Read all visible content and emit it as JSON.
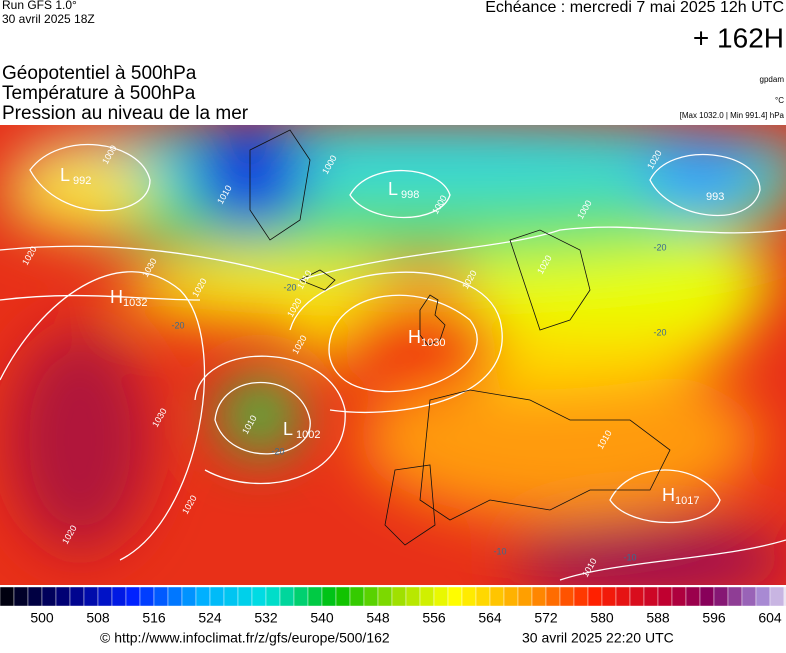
{
  "header": {
    "run": "Run GFS 1.0°",
    "run_date": "30 avril 2025 18Z",
    "echeance": "Echéance : mercredi 7 mai 2025 12h UTC",
    "lead": "+ 162H"
  },
  "fields": [
    "Géopotentiel à 500hPa",
    "Température à 500hPa",
    "Pression au niveau de la mer"
  ],
  "units": {
    "geopotential": "gpdam",
    "temperature": "°C",
    "pressure_range": "[Max 1032.0 | Min 991.4] hPa"
  },
  "map": {
    "centers": [
      {
        "letter": "L",
        "value": 992
      },
      {
        "letter": "L",
        "value": 998
      },
      {
        "letter": "H",
        "value": 1032
      },
      {
        "letter": "H",
        "value": 1030
      },
      {
        "letter": "L",
        "value": 1002
      },
      {
        "letter": "H",
        "value": 1017
      },
      {
        "letter": "",
        "value": 993
      }
    ],
    "isobar_labels": [
      1000,
      1010,
      1020,
      1030,
      1020,
      1000,
      1000,
      1020,
      1020,
      1010,
      1020,
      1020,
      1030,
      1020,
      1020,
      1010,
      1010,
      1010,
      1020,
      1000
    ],
    "temperature_labels": [
      -20,
      -20,
      -20,
      -20,
      -10,
      -10,
      -20
    ]
  },
  "colorbar": {
    "labels": [
      500,
      508,
      516,
      524,
      532,
      540,
      548,
      556,
      564,
      572,
      580,
      588,
      596,
      604
    ]
  },
  "footer": {
    "url": "© http://www.infoclimat.fr/z/gfs/europe/500/162",
    "generated": "30 avril 2025 22:20 UTC"
  }
}
